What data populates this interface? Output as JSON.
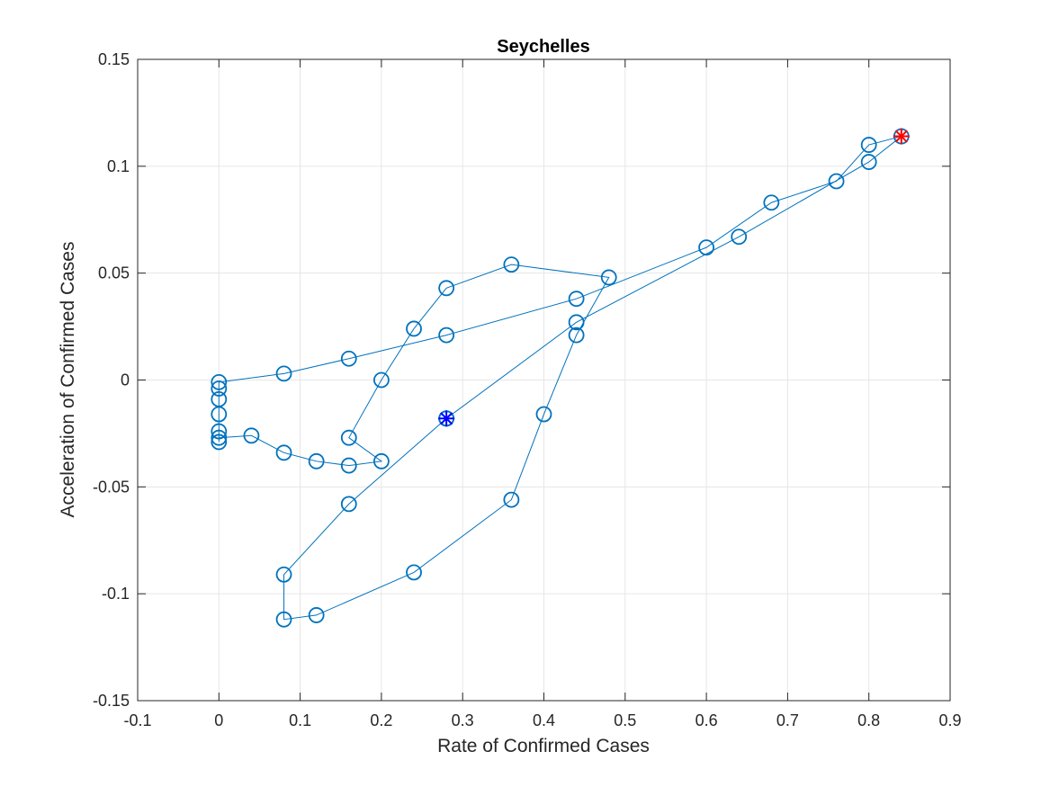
{
  "chart_data": {
    "type": "line",
    "title": "Seychelles",
    "xlabel": "Rate of Confirmed Cases",
    "ylabel": "Acceleration of Confirmed Cases",
    "xlim": [
      -0.1,
      0.9
    ],
    "ylim": [
      -0.15,
      0.15
    ],
    "xticks": [
      -0.1,
      0,
      0.1,
      0.2,
      0.3,
      0.4,
      0.5,
      0.6,
      0.7,
      0.8,
      0.9
    ],
    "xtick_labels": [
      "-0.1",
      "0",
      "0.1",
      "0.2",
      "0.3",
      "0.4",
      "0.5",
      "0.6",
      "0.7",
      "0.8",
      "0.9"
    ],
    "yticks": [
      -0.15,
      -0.1,
      -0.05,
      0,
      0.05,
      0.1,
      0.15
    ],
    "ytick_labels": [
      "-0.15",
      "-0.1",
      "-0.05",
      "0",
      "0.05",
      "0.1",
      "0.15"
    ],
    "grid": true,
    "series": [
      {
        "marker": "circle",
        "color": "#0072BD",
        "x": [
          0.28,
          0.16,
          0.08,
          0.08,
          0.12,
          0.24,
          0.36,
          0.4,
          0.44,
          0.48,
          0.36,
          0.28,
          0.24,
          0.2,
          0.16,
          0.2,
          0.16,
          0.12,
          0.08,
          0.04,
          0,
          0,
          0,
          0,
          0,
          0,
          0,
          0.08,
          0.16,
          0.28,
          0.44,
          0.6,
          0.68,
          0.76,
          0.8,
          0.84,
          0.8,
          0.64,
          0.44,
          0.28
        ],
        "y": [
          -0.018,
          -0.058,
          -0.091,
          -0.112,
          -0.11,
          -0.09,
          -0.056,
          -0.016,
          0.021,
          0.048,
          0.054,
          0.043,
          0.024,
          0.0,
          -0.027,
          -0.038,
          -0.04,
          -0.038,
          -0.034,
          -0.026,
          -0.027,
          -0.029,
          -0.024,
          -0.016,
          -0.009,
          -0.004,
          -0.001,
          0.003,
          0.01,
          0.021,
          0.038,
          0.062,
          0.083,
          0.093,
          0.11,
          0.114,
          0.102,
          0.067,
          0.027,
          -0.018
        ]
      }
    ],
    "start_marker": {
      "x": 0.28,
      "y": -0.018,
      "marker": "asterisk",
      "color": "#0000FF"
    },
    "end_marker": {
      "x": 0.84,
      "y": 0.114,
      "marker": "asterisk",
      "color": "#FF0000"
    },
    "colors": {
      "line": "#0072BD",
      "start": "#0000FF",
      "end": "#FF0000",
      "grid": "#E6E6E6",
      "axis": "#262626"
    }
  }
}
